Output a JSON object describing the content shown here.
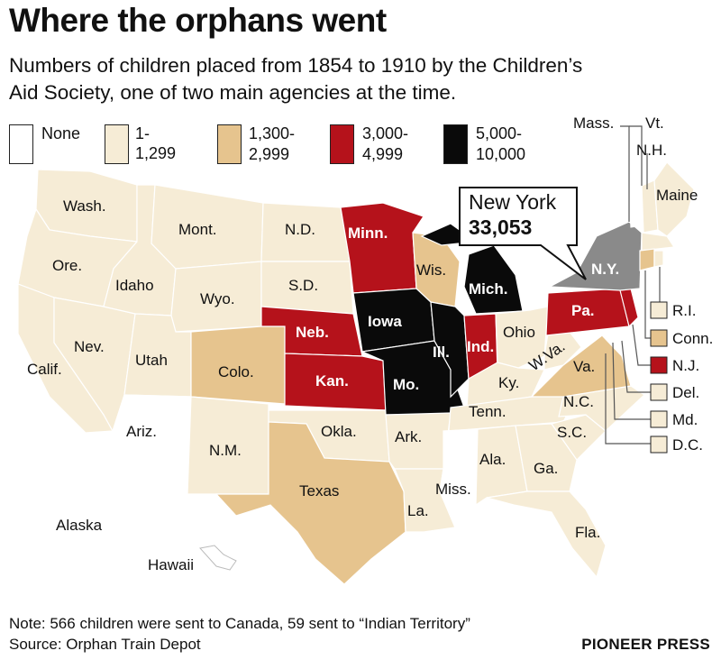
{
  "title": "Where the orphans went",
  "subtitle_line1": "Numbers of children placed from 1854 to 1910 by the Children’s",
  "subtitle_line2": "Aid Society, one of two main agencies at the time.",
  "legend": [
    {
      "line1": "None",
      "line2": "",
      "color": "#ffffff"
    },
    {
      "line1": "1-1,299",
      "line2": "",
      "color": "#f6ecd6"
    },
    {
      "line1": "1,300-",
      "line2": "2,999",
      "color": "#e6c48e"
    },
    {
      "line1": "3,000-",
      "line2": "4,999",
      "color": "#b5121b"
    },
    {
      "line1": "5,000-",
      "line2": "10,000",
      "color": "#0a0a0a"
    }
  ],
  "callout": {
    "name": "New York",
    "value": "33,053",
    "color": "#8a8a8a"
  },
  "states": {
    "wash": "Wash.",
    "ore": "Ore.",
    "calif": "Calif.",
    "idaho": "Idaho",
    "nev": "Nev.",
    "mont": "Mont.",
    "wyo": "Wyo.",
    "utah": "Utah",
    "ariz": "Ariz.",
    "colo": "Colo.",
    "nm": "N.M.",
    "nd": "N.D.",
    "sd": "S.D.",
    "neb": "Neb.",
    "kan": "Kan.",
    "okla": "Okla.",
    "texas": "Texas",
    "minn": "Minn.",
    "iowa": "Iowa",
    "mo": "Mo.",
    "ark": "Ark.",
    "la": "La.",
    "wis": "Wis.",
    "ill": "Ill.",
    "mich": "Mich.",
    "ind": "Ind.",
    "ohio": "Ohio",
    "ky": "Ky.",
    "tenn": "Tenn.",
    "miss": "Miss.",
    "ala": "Ala.",
    "ga": "Ga.",
    "fla": "Fla.",
    "sc": "S.C.",
    "nc": "N.C.",
    "va": "Va.",
    "wva": "W.Va.",
    "pa": "Pa.",
    "ny": "N.Y.",
    "maine": "Maine",
    "vt": "Vt.",
    "nh": "N.H.",
    "mass": "Mass.",
    "alaska": "Alaska",
    "hawaii": "Hawaii"
  },
  "small_states": [
    {
      "label": "R.I.",
      "color": "#f6ecd6"
    },
    {
      "label": "Conn.",
      "color": "#e6c48e"
    },
    {
      "label": "N.J.",
      "color": "#b5121b"
    },
    {
      "label": "Del.",
      "color": "#f6ecd6"
    },
    {
      "label": "Md.",
      "color": "#f6ecd6"
    },
    {
      "label": "D.C.",
      "color": "#f6ecd6"
    }
  ],
  "note": "Note: 566 children were sent to Canada, 59 sent to “Indian Territory”",
  "source": "Source: Orphan Train Depot",
  "credit": "PIONEER PRESS"
}
